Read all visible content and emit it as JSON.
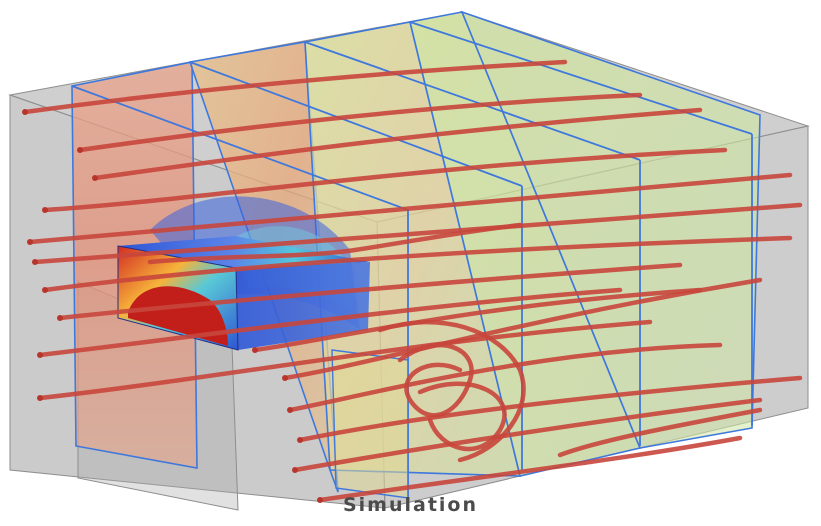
{
  "figure": {
    "caption": "Simulation"
  },
  "colors": {
    "housing": "#9a9a9a",
    "slice_edge": "#3a6fd8",
    "streamline": "#c8463c",
    "field_hot": "#d83a2a",
    "field_warm": "#f0b23a",
    "field_mild": "#cfe07a",
    "field_cold": "#2f55d6"
  },
  "icons": {
    "object": "rectangular-obstacle",
    "lines": "streamlines",
    "planes": "section-planes"
  }
}
